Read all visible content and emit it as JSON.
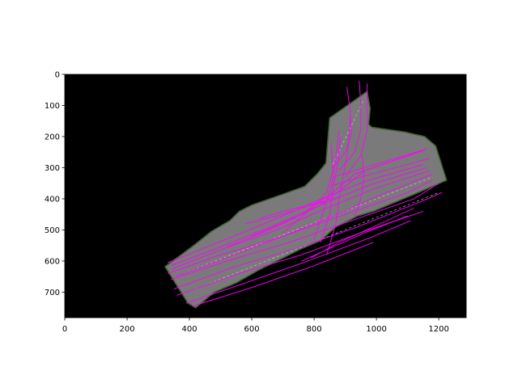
{
  "chart_data": {
    "type": "scatter",
    "title": "",
    "xlabel": "",
    "ylabel": "",
    "xlim": [
      0,
      1288
    ],
    "ylim": [
      782,
      0
    ],
    "y_inverted": true,
    "grid": false,
    "background_color": "#000000",
    "trajectory_color": "#ff00ff",
    "road_color": "#7a7a7a",
    "vegetation_color": "#3f5f2f",
    "x_ticks": [
      0,
      200,
      400,
      600,
      800,
      1000,
      1200
    ],
    "y_ticks": [
      0,
      100,
      200,
      300,
      400,
      500,
      600,
      700
    ],
    "image_region_polygon": [
      [
        322,
        618
      ],
      [
        360,
        590
      ],
      [
        420,
        545
      ],
      [
        470,
        505
      ],
      [
        530,
        470
      ],
      [
        560,
        440
      ],
      [
        600,
        420
      ],
      [
        700,
        385
      ],
      [
        770,
        360
      ],
      [
        810,
        320
      ],
      [
        838,
        285
      ],
      [
        850,
        140
      ],
      [
        970,
        55
      ],
      [
        980,
        110
      ],
      [
        975,
        160
      ],
      [
        985,
        170
      ],
      [
        1090,
        185
      ],
      [
        1155,
        200
      ],
      [
        1190,
        230
      ],
      [
        1225,
        340
      ],
      [
        1110,
        390
      ],
      [
        990,
        440
      ],
      [
        940,
        455
      ],
      [
        870,
        490
      ],
      [
        820,
        535
      ],
      [
        760,
        560
      ],
      [
        700,
        590
      ],
      [
        620,
        630
      ],
      [
        550,
        670
      ],
      [
        480,
        700
      ],
      [
        420,
        750
      ],
      [
        395,
        735
      ]
    ],
    "series": [
      {
        "values": [
          [
            330,
            640
          ],
          [
            500,
            580
          ],
          [
            700,
            520
          ],
          [
            900,
            450
          ],
          [
            1100,
            380
          ],
          [
            1180,
            340
          ]
        ]
      },
      {
        "values": [
          [
            340,
            660
          ],
          [
            520,
            600
          ],
          [
            720,
            540
          ],
          [
            920,
            470
          ],
          [
            1120,
            400
          ],
          [
            1200,
            350
          ]
        ]
      },
      {
        "values": [
          [
            350,
            690
          ],
          [
            540,
            620
          ],
          [
            740,
            560
          ],
          [
            940,
            490
          ],
          [
            1140,
            410
          ],
          [
            1210,
            380
          ]
        ]
      },
      {
        "values": [
          [
            360,
            710
          ],
          [
            560,
            640
          ],
          [
            760,
            580
          ],
          [
            960,
            505
          ],
          [
            1150,
            440
          ]
        ]
      },
      {
        "values": [
          [
            390,
            735
          ],
          [
            580,
            670
          ],
          [
            780,
            600
          ],
          [
            980,
            525
          ],
          [
            1110,
            470
          ]
        ]
      },
      {
        "values": [
          [
            410,
            745
          ],
          [
            600,
            685
          ],
          [
            800,
            615
          ],
          [
            990,
            540
          ]
        ]
      },
      {
        "values": [
          [
            330,
            605
          ],
          [
            480,
            545
          ],
          [
            640,
            480
          ],
          [
            800,
            410
          ],
          [
            960,
            345
          ],
          [
            1150,
            290
          ]
        ]
      },
      {
        "values": [
          [
            340,
            615
          ],
          [
            500,
            555
          ],
          [
            660,
            490
          ],
          [
            820,
            420
          ],
          [
            980,
            355
          ],
          [
            1160,
            300
          ]
        ]
      },
      {
        "values": [
          [
            345,
            625
          ],
          [
            510,
            560
          ],
          [
            680,
            500
          ],
          [
            840,
            430
          ],
          [
            1000,
            365
          ],
          [
            1170,
            310
          ]
        ]
      },
      {
        "values": [
          [
            355,
            650
          ],
          [
            530,
            585
          ],
          [
            700,
            520
          ],
          [
            860,
            455
          ],
          [
            1020,
            385
          ],
          [
            1180,
            320
          ]
        ]
      },
      {
        "values": [
          [
            520,
            555
          ],
          [
            680,
            490
          ],
          [
            820,
            420
          ],
          [
            900,
            360
          ],
          [
            960,
            310
          ],
          [
            1150,
            245
          ]
        ]
      },
      {
        "values": [
          [
            600,
            520
          ],
          [
            760,
            450
          ],
          [
            860,
            380
          ],
          [
            930,
            320
          ],
          [
            1160,
            240
          ]
        ]
      },
      {
        "values": [
          [
            860,
            300
          ],
          [
            900,
            250
          ],
          [
            920,
            190
          ],
          [
            915,
            110
          ],
          [
            905,
            40
          ]
        ]
      },
      {
        "values": [
          [
            880,
            310
          ],
          [
            930,
            250
          ],
          [
            950,
            180
          ],
          [
            950,
            100
          ],
          [
            945,
            20
          ]
        ]
      },
      {
        "values": [
          [
            900,
            330
          ],
          [
            950,
            260
          ],
          [
            970,
            180
          ],
          [
            970,
            100
          ],
          [
            970,
            30
          ]
        ]
      },
      {
        "values": [
          [
            840,
            580
          ],
          [
            870,
            480
          ],
          [
            880,
            400
          ],
          [
            895,
            320
          ],
          [
            910,
            230
          ],
          [
            915,
            140
          ]
        ]
      },
      {
        "values": [
          [
            820,
            540
          ],
          [
            850,
            450
          ],
          [
            860,
            370
          ],
          [
            875,
            290
          ],
          [
            885,
            200
          ]
        ]
      },
      {
        "values": [
          [
            800,
            530
          ],
          [
            830,
            440
          ],
          [
            855,
            360
          ],
          [
            870,
            270
          ],
          [
            880,
            180
          ]
        ]
      },
      {
        "values": [
          [
            700,
            510
          ],
          [
            780,
            440
          ],
          [
            840,
            380
          ],
          [
            860,
            310
          ],
          [
            855,
            220
          ]
        ]
      },
      {
        "values": [
          [
            860,
            330
          ],
          [
            960,
            300
          ],
          [
            1060,
            270
          ],
          [
            1160,
            240
          ]
        ]
      },
      {
        "values": [
          [
            850,
            360
          ],
          [
            950,
            330
          ],
          [
            1060,
            300
          ],
          [
            1170,
            270
          ]
        ]
      },
      {
        "values": [
          [
            790,
            590
          ],
          [
            880,
            540
          ],
          [
            990,
            490
          ],
          [
            1120,
            430
          ]
        ]
      },
      {
        "values": [
          [
            760,
            600
          ],
          [
            860,
            555
          ],
          [
            960,
            510
          ],
          [
            1100,
            455
          ]
        ]
      },
      {
        "values": [
          [
            620,
            465
          ],
          [
            700,
            440
          ],
          [
            780,
            420
          ],
          [
            840,
            405
          ],
          [
            880,
            395
          ]
        ]
      },
      {
        "values": [
          [
            580,
            480
          ],
          [
            680,
            455
          ],
          [
            760,
            430
          ],
          [
            830,
            410
          ]
        ]
      },
      {
        "values": [
          [
            930,
            455
          ],
          [
            950,
            400
          ],
          [
            960,
            330
          ],
          [
            955,
            260
          ]
        ]
      }
    ]
  }
}
